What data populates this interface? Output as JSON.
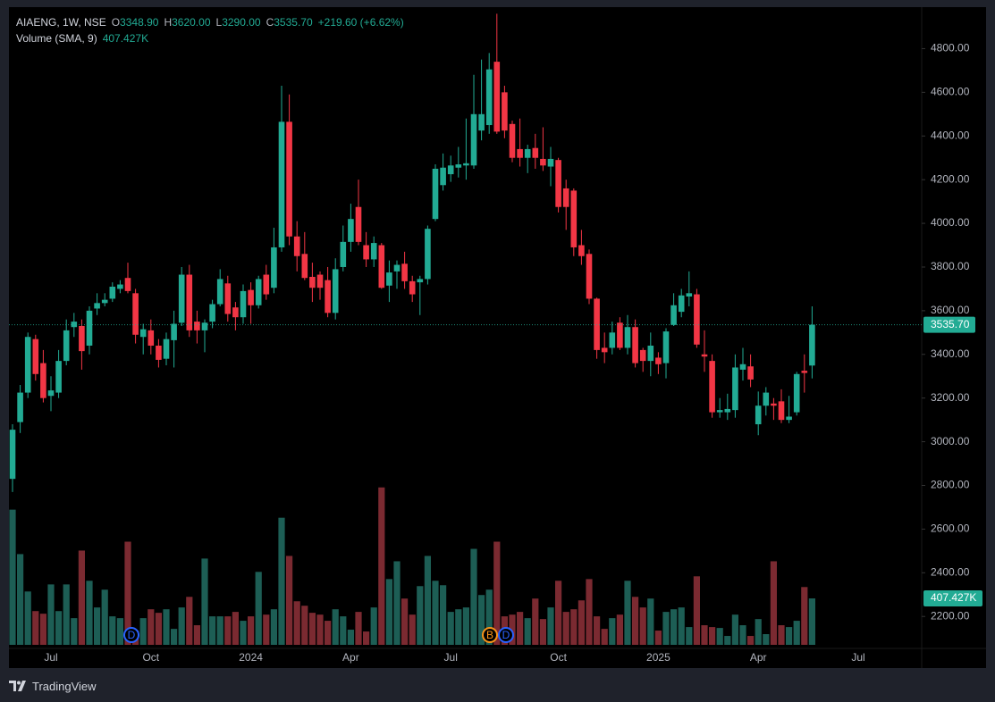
{
  "chart_data": {
    "type": "candlestick",
    "title": "AIAENG, 1W, NSE",
    "ohlc_legend": [
      {
        "label": "O",
        "value": "3348.90"
      },
      {
        "label": "H",
        "value": "3620.00"
      },
      {
        "label": "L",
        "value": "3290.00"
      },
      {
        "label": "C",
        "value": "3535.70"
      }
    ],
    "change": "+219.60 (+6.62%)",
    "volume_title": "Volume (SMA, 9)",
    "volume_label": "407.427K",
    "last_price_label": "3535.70",
    "up_color": "#22ab94",
    "down_color": "#f23645",
    "up_volume_color": "#1d5e55",
    "down_volume_color": "#7b2a31",
    "categories": [
      null,
      null,
      null,
      null,
      null,
      "Jul",
      null,
      null,
      null,
      null,
      null,
      null,
      null,
      null,
      null,
      null,
      null,
      null,
      "Oct",
      null,
      null,
      null,
      null,
      null,
      null,
      null,
      null,
      null,
      null,
      null,
      null,
      "2024",
      null,
      null,
      null,
      null,
      null,
      null,
      null,
      null,
      null,
      null,
      null,
      null,
      "Apr",
      null,
      null,
      null,
      null,
      null,
      null,
      null,
      null,
      null,
      null,
      null,
      null,
      "Jul",
      null,
      null,
      null,
      null,
      null,
      null,
      null,
      null,
      null,
      null,
      null,
      null,
      null,
      "Oct",
      null,
      null,
      null,
      null,
      null,
      null,
      null,
      null,
      null,
      null,
      null,
      null,
      "2025",
      null,
      null,
      null,
      null,
      null,
      null,
      null,
      null,
      null,
      null,
      null,
      null,
      "Apr",
      null,
      null,
      null,
      null,
      null,
      null,
      null,
      null,
      null,
      null,
      null,
      null,
      "Jul"
    ],
    "open": [
      2830,
      3090,
      3225,
      3470,
      3360,
      3210,
      3225,
      3370,
      3525,
      3530,
      3440,
      3610,
      3635,
      3655,
      3700,
      3750,
      3680,
      3480,
      3510,
      3440,
      3380,
      3465,
      3545,
      3765,
      3550,
      3510,
      3550,
      3630,
      3725,
      3615,
      3570,
      3695,
      3625,
      3765,
      3705,
      3890,
      4465,
      3940,
      3860,
      3755,
      3765,
      3740,
      3590,
      3800,
      3915,
      4075,
      3900,
      3835,
      3900,
      3715,
      3780,
      3815,
      3735,
      3730,
      3745,
      4020,
      4175,
      4225,
      4255,
      4265,
      4265,
      4425,
      4450,
      4740,
      4600,
      4455,
      4340,
      4300,
      4345,
      4295,
      4260,
      4290,
      4160,
      4150,
      3900,
      3860,
      3655,
      3430,
      3430,
      3545,
      3430,
      3525,
      3420,
      3370,
      3385,
      3360,
      3535,
      3595,
      3665,
      3675,
      3400,
      3370,
      3135,
      3135,
      3145,
      3330,
      3345,
      3080,
      3165,
      3175,
      3185,
      3100,
      3135,
      3325,
      3348.9,
      null,
      null,
      null,
      null,
      null,
      null
    ],
    "high": [
      3080,
      3260,
      3500,
      3490,
      3420,
      3300,
      3420,
      3560,
      3590,
      3560,
      3620,
      3680,
      3680,
      3730,
      3740,
      3820,
      3700,
      3540,
      3560,
      3470,
      3500,
      3600,
      3800,
      3810,
      3600,
      3560,
      3650,
      3790,
      3760,
      3640,
      3720,
      3730,
      3760,
      3810,
      3980,
      4630,
      4590,
      4010,
      3960,
      3820,
      3780,
      3800,
      3840,
      3990,
      4090,
      4200,
      3960,
      3940,
      3910,
      3830,
      3830,
      3870,
      3760,
      3760,
      3990,
      4270,
      4320,
      4310,
      4350,
      4480,
      4680,
      4750,
      4780,
      4960,
      4630,
      4470,
      4480,
      4360,
      4410,
      4440,
      4350,
      4300,
      4200,
      4160,
      3970,
      3880,
      3660,
      3500,
      3550,
      3570,
      3580,
      3560,
      3430,
      3500,
      3410,
      3520,
      3680,
      3700,
      3780,
      3700,
      3510,
      3400,
      3200,
      3220,
      3400,
      3430,
      3400,
      3230,
      3250,
      3200,
      3240,
      3210,
      3320,
      3400,
      3620,
      null,
      null,
      null,
      null,
      null,
      null
    ],
    "low": [
      2770,
      3040,
      3200,
      3280,
      3180,
      3140,
      3200,
      3350,
      3480,
      3330,
      3400,
      3580,
      3620,
      3640,
      3680,
      3680,
      3450,
      3400,
      3400,
      3340,
      3350,
      3340,
      3530,
      3480,
      3450,
      3410,
      3520,
      3620,
      3550,
      3510,
      3540,
      3540,
      3610,
      3650,
      3680,
      3870,
      3900,
      3780,
      3740,
      3640,
      3650,
      3570,
      3560,
      3780,
      3870,
      3900,
      3800,
      3800,
      3700,
      3640,
      3700,
      3700,
      3640,
      3580,
      3720,
      4010,
      4150,
      4190,
      4210,
      4200,
      4250,
      4380,
      4410,
      4410,
      4390,
      4280,
      4260,
      4230,
      4250,
      4240,
      4170,
      4050,
      3970,
      3850,
      3810,
      3630,
      3380,
      3360,
      3400,
      3420,
      3400,
      3340,
      3320,
      3300,
      3310,
      3290,
      3530,
      3570,
      3620,
      3430,
      3320,
      3110,
      3110,
      3100,
      3110,
      3280,
      3250,
      3030,
      3120,
      3100,
      3085,
      3085,
      3120,
      3225,
      3290,
      null,
      null,
      null,
      null,
      null,
      null
    ],
    "close": [
      3055,
      3225,
      3480,
      3310,
      3200,
      3235,
      3370,
      3510,
      3550,
      3415,
      3600,
      3635,
      3650,
      3710,
      3720,
      3690,
      3490,
      3515,
      3440,
      3375,
      3470,
      3540,
      3765,
      3510,
      3510,
      3545,
      3630,
      3745,
      3585,
      3570,
      3690,
      3625,
      3745,
      3675,
      3890,
      4465,
      3940,
      3850,
      3750,
      3705,
      3705,
      3590,
      3790,
      3915,
      4020,
      3915,
      3835,
      3910,
      3705,
      3775,
      3810,
      3735,
      3675,
      3745,
      3975,
      4250,
      4255,
      4265,
      4270,
      4275,
      4500,
      4500,
      4705,
      4420,
      4425,
      4300,
      4300,
      4340,
      4300,
      4265,
      4295,
      4075,
      4075,
      3890,
      3850,
      3655,
      3420,
      3410,
      3500,
      3430,
      3525,
      3360,
      3370,
      3440,
      3355,
      3505,
      3625,
      3670,
      3680,
      3445,
      3390,
      3135,
      3145,
      3150,
      3340,
      3355,
      3285,
      3165,
      3225,
      3165,
      3100,
      3115,
      3310,
      3315,
      3535.7,
      null,
      null,
      null,
      null,
      null,
      null
    ],
    "volume": [
      1186,
      796,
      468,
      296,
      273,
      530,
      296,
      530,
      234,
      827,
      562,
      328,
      484,
      250,
      234,
      905,
      125,
      234,
      312,
      281,
      312,
      140,
      328,
      421,
      172,
      757,
      250,
      250,
      250,
      289,
      211,
      250,
      640,
      265,
      312,
      1115,
      780,
      382,
      343,
      281,
      265,
      211,
      312,
      250,
      133,
      289,
      117,
      328,
      1381,
      577,
      733,
      406,
      265,
      515,
      780,
      562,
      523,
      289,
      312,
      328,
      842,
      437,
      484,
      905,
      250,
      265,
      289,
      234,
      406,
      226,
      328,
      562,
      289,
      312,
      390,
      577,
      250,
      140,
      234,
      265,
      562,
      421,
      328,
      406,
      125,
      289,
      312,
      328,
      156,
      601,
      172,
      156,
      148,
      78,
      265,
      172,
      78,
      226,
      94,
      733,
      172,
      156,
      211,
      507,
      407.427,
      null,
      null,
      null,
      null,
      null,
      null
    ],
    "ylim": [
      2070,
      4990
    ],
    "yticks": [
      {
        "value": 2200,
        "label": "2200.00"
      },
      {
        "value": 2400,
        "label": "2400.00"
      },
      {
        "value": 2600,
        "label": "2600.00"
      },
      {
        "value": 2800,
        "label": "2800.00"
      },
      {
        "value": 3000,
        "label": "3000.00"
      },
      {
        "value": 3200,
        "label": "3200.00"
      },
      {
        "value": 3400,
        "label": "3400.00"
      },
      {
        "value": 3600,
        "label": "3600.00"
      },
      {
        "value": 3800,
        "label": "3800.00"
      },
      {
        "value": 4000,
        "label": "4000.00"
      },
      {
        "value": 4200,
        "label": "4200.00"
      },
      {
        "value": 4400,
        "label": "4400.00"
      },
      {
        "value": 4600,
        "label": "4600.00"
      },
      {
        "value": 4800,
        "label": "4800.00"
      }
    ],
    "grid": false,
    "markers": [
      "D",
      "B",
      "D"
    ],
    "brand": "TradingView"
  }
}
